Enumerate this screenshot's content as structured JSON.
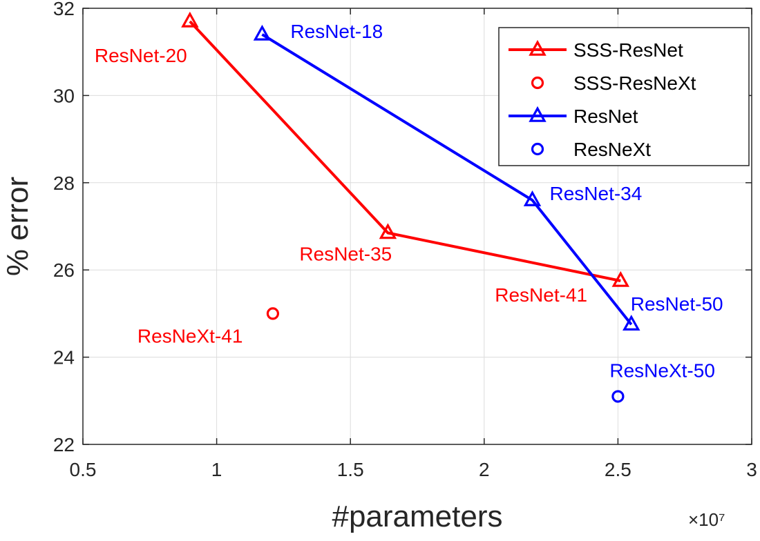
{
  "chart_data": {
    "type": "line",
    "xlabel": "#parameters",
    "ylabel": "% error",
    "x_scale_exponent": "×10⁷",
    "xlim": [
      0.5,
      3
    ],
    "ylim": [
      22,
      32
    ],
    "xticks": [
      0.5,
      1,
      1.5,
      2,
      2.5,
      3
    ],
    "xtick_labels": [
      "0.5",
      "1",
      "1.5",
      "2",
      "2.5",
      "3"
    ],
    "yticks": [
      22,
      24,
      26,
      28,
      30,
      32
    ],
    "ytick_labels": [
      "22",
      "24",
      "26",
      "28",
      "30",
      "32"
    ],
    "grid": true,
    "legend_position": "top-right",
    "series": [
      {
        "name": "SSS-ResNet",
        "color": "#ff0000",
        "marker": "triangle",
        "line": true,
        "points": [
          {
            "x": 0.9,
            "y": 31.7,
            "label": "ResNet-20"
          },
          {
            "x": 1.64,
            "y": 26.85,
            "label": "ResNet-35"
          },
          {
            "x": 2.51,
            "y": 25.75,
            "label": "ResNet-41"
          }
        ]
      },
      {
        "name": "SSS-ResNeXt",
        "color": "#ff0000",
        "marker": "circle",
        "line": false,
        "points": [
          {
            "x": 1.21,
            "y": 25.0,
            "label": "ResNeXt-41"
          }
        ]
      },
      {
        "name": "ResNet",
        "color": "#0000ff",
        "marker": "triangle",
        "line": true,
        "points": [
          {
            "x": 1.17,
            "y": 31.4,
            "label": "ResNet-18"
          },
          {
            "x": 2.18,
            "y": 27.6,
            "label": "ResNet-34"
          },
          {
            "x": 2.55,
            "y": 24.75,
            "label": "ResNet-50"
          }
        ]
      },
      {
        "name": "ResNeXt",
        "color": "#0000ff",
        "marker": "circle",
        "line": false,
        "points": [
          {
            "x": 2.5,
            "y": 23.1,
            "label": "ResNeXt-50"
          }
        ]
      }
    ]
  }
}
